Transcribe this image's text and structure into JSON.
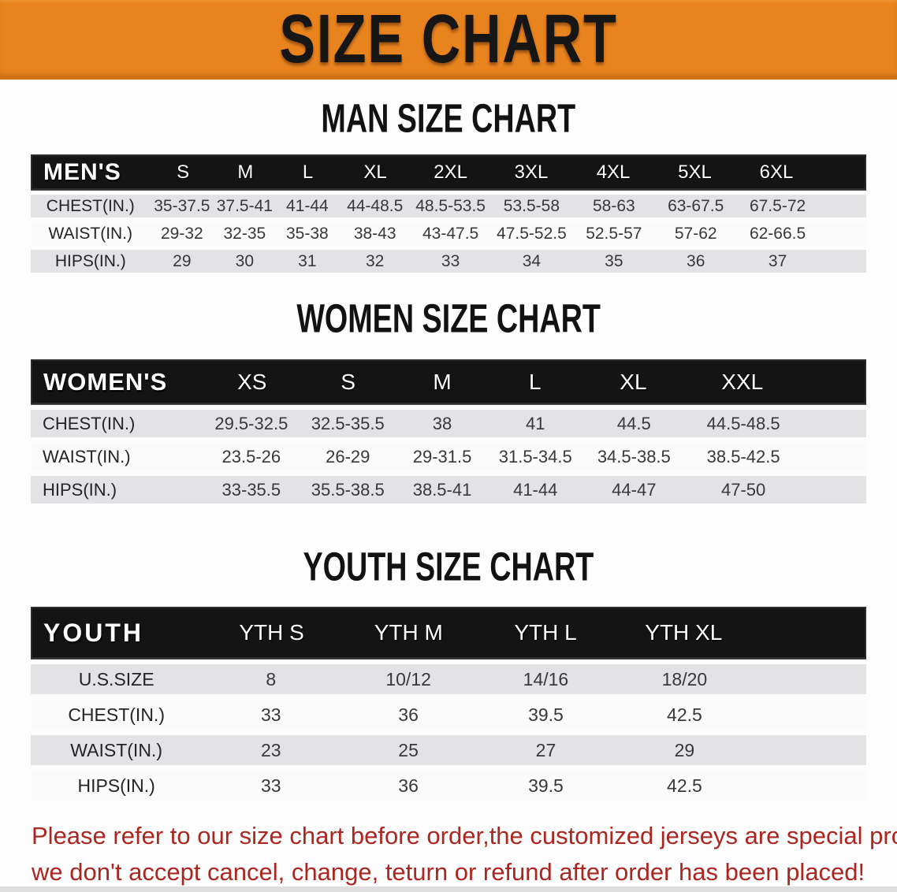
{
  "banner": {
    "title": "SIZE CHART"
  },
  "colors": {
    "banner_orange": "#E8831E",
    "band_black": "#141414",
    "row_gray": "#E3E3E5",
    "row_white": "#FBFBFB",
    "disclaimer_red": "#AC2620"
  },
  "tables": [
    {
      "id": "men",
      "heading": "MAN SIZE CHART",
      "header_label": "MEN'S",
      "sizes": [
        "S",
        "M",
        "L",
        "XL",
        "2XL",
        "3XL",
        "4XL",
        "5XL",
        "6XL"
      ],
      "rows": [
        {
          "label": "CHEST(IN.)",
          "cells": [
            "35-37.5",
            "37.5-41",
            "41-44",
            "44-48.5",
            "48.5-53.5",
            "53.5-58",
            "58-63",
            "63-67.5",
            "67.5-72"
          ]
        },
        {
          "label": "WAIST(IN.)",
          "cells": [
            "29-32",
            "32-35",
            "35-38",
            "38-43",
            "43-47.5",
            "47.5-52.5",
            "52.5-57",
            "57-62",
            "62-66.5"
          ]
        },
        {
          "label": "HIPS(IN.)",
          "cells": [
            "29",
            "30",
            "31",
            "32",
            "33",
            "34",
            "35",
            "36",
            "37"
          ]
        }
      ]
    },
    {
      "id": "women",
      "heading": "WOMEN SIZE CHART",
      "header_label": "WOMEN'S",
      "sizes": [
        "XS",
        "S",
        "M",
        "L",
        "XL",
        "XXL"
      ],
      "rows": [
        {
          "label": "CHEST(IN.)",
          "cells": [
            "29.5-32.5",
            "32.5-35.5",
            "38",
            "41",
            "44.5",
            "44.5-48.5"
          ]
        },
        {
          "label": "WAIST(IN.)",
          "cells": [
            "23.5-26",
            "26-29",
            "29-31.5",
            "31.5-34.5",
            "34.5-38.5",
            "38.5-42.5"
          ]
        },
        {
          "label": "HIPS(IN.)",
          "cells": [
            "33-35.5",
            "35.5-38.5",
            "38.5-41",
            "41-44",
            "44-47",
            "47-50"
          ]
        }
      ]
    },
    {
      "id": "youth",
      "heading": "YOUTH SIZE CHART",
      "header_label": "YOUTH",
      "sizes": [
        "YTH S",
        "YTH M",
        "YTH L",
        "YTH XL"
      ],
      "rows": [
        {
          "label": "U.S.SIZE",
          "cells": [
            "8",
            "10/12",
            "14/16",
            "18/20"
          ]
        },
        {
          "label": "CHEST(IN.)",
          "cells": [
            "33",
            "36",
            "39.5",
            "42.5"
          ]
        },
        {
          "label": "WAIST(IN.)",
          "cells": [
            "23",
            "25",
            "27",
            "29"
          ]
        },
        {
          "label": "HIPS(IN.)",
          "cells": [
            "33",
            "36",
            "39.5",
            "42.5"
          ]
        }
      ]
    }
  ],
  "disclaimer": {
    "line1": "Please refer to our size chart before order,the customized jerseys are special products,",
    "line2": "we don't accept cancel, change, teturn or refund after order has been placed!"
  }
}
